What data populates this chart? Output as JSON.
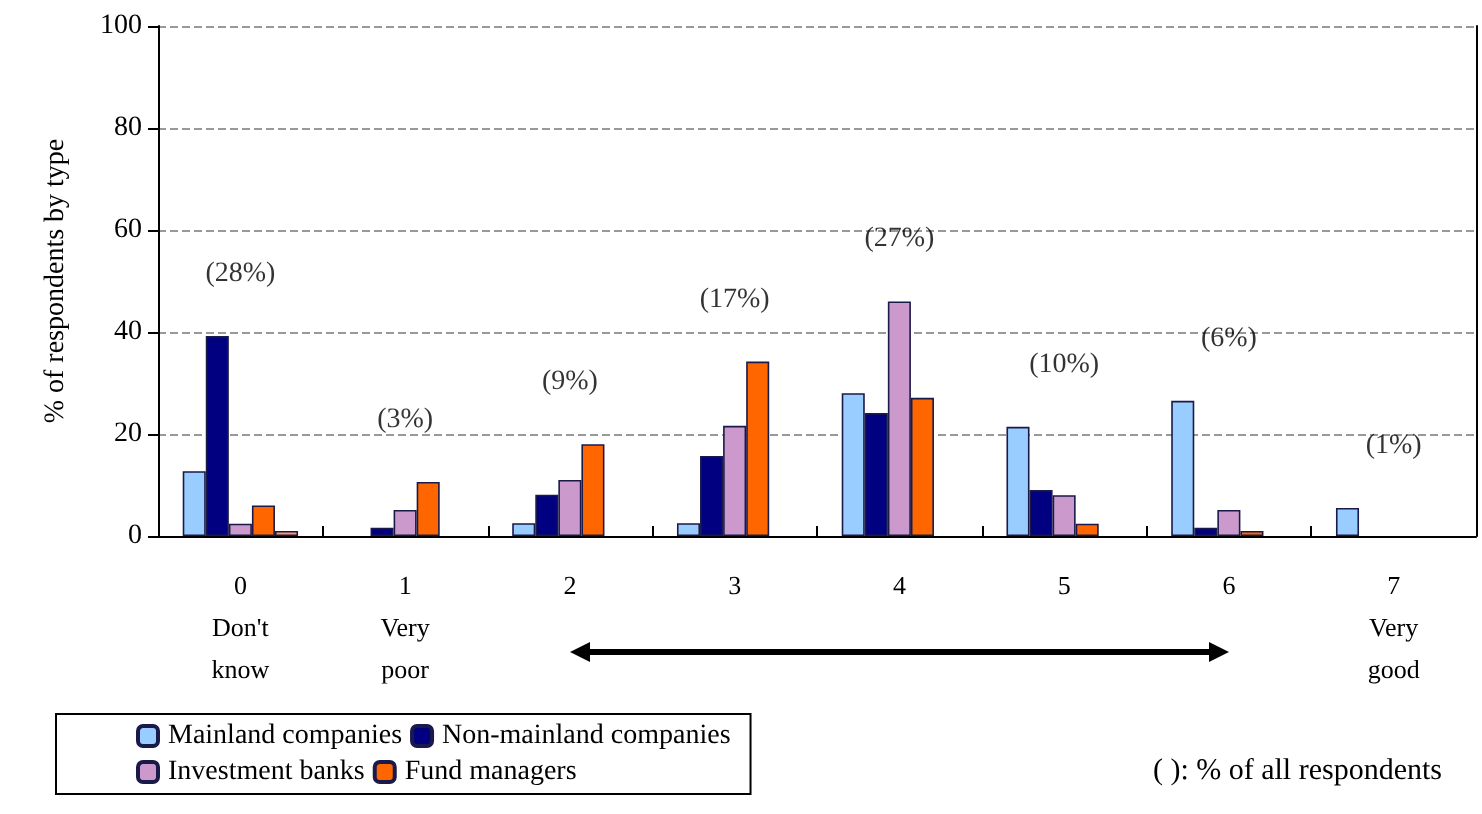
{
  "chart_data": {
    "type": "bar",
    "ylabel": "% of respondents by type",
    "categories": [
      "0\nDon't\nknow",
      "1\nVery\npoor",
      "2",
      "3",
      "4",
      "5",
      "6",
      "7\nVery\ngood"
    ],
    "series": [
      {
        "name": "Mainland companies",
        "color": "#99ccff",
        "values": [
          12.7,
          null,
          2.5,
          2.5,
          28.0,
          21.4,
          26.5,
          5.5
        ]
      },
      {
        "name": "Non-mainland companies",
        "color": "#000080",
        "values": [
          39.2,
          1.6,
          8.1,
          15.7,
          24.1,
          9.0,
          1.6,
          null
        ]
      },
      {
        "name": "Investment banks",
        "color": "#cc99cc",
        "values": [
          2.4,
          5.1,
          11.0,
          21.6,
          46.0,
          8.0,
          5.1,
          null
        ]
      },
      {
        "name": "Fund managers",
        "color": "#ff6600",
        "values": [
          6.0,
          10.6,
          18.0,
          34.2,
          27.1,
          2.4,
          1.0,
          null
        ]
      },
      {
        "color": "#ff9966",
        "values": [
          1.0,
          null,
          null,
          null,
          null,
          null,
          null,
          null
        ]
      }
    ],
    "ylim": [
      0,
      100
    ],
    "yticks": [
      0,
      20,
      40,
      60,
      80,
      100
    ],
    "grid": "y",
    "legend": "bottom left",
    "annotations": [
      "(28%)",
      "(3%)",
      "(9%)",
      "(17%)",
      "(27%)",
      "(10%)",
      "(6%)",
      "(1%)",
      "( ): % of all respondents"
    ]
  }
}
